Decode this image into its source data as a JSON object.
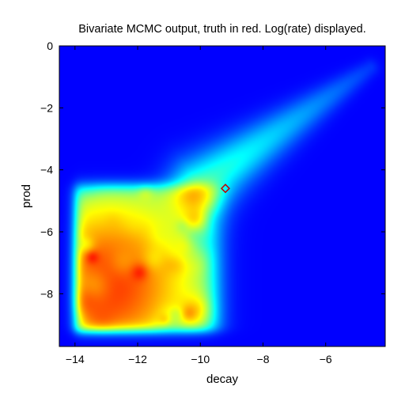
{
  "chart_data": {
    "type": "heatmap",
    "title": "Bivariate MCMC output, truth in red. Log(rate) displayed.",
    "xlabel": "decay",
    "ylabel": "prod",
    "xlim": [
      -14.5,
      -4.1
    ],
    "ylim": [
      -9.7,
      0
    ],
    "xticks": [
      -14,
      -12,
      -10,
      -8,
      -6
    ],
    "yticks": [
      0,
      -2,
      -4,
      -6,
      -8
    ],
    "xtick_labels": [
      "−14",
      "−12",
      "−10",
      "−8",
      "−6"
    ],
    "ytick_labels": [
      "0",
      "−2",
      "−4",
      "−6",
      "−8"
    ],
    "colormap": "jet",
    "background_color": "#00008f",
    "grid": false,
    "truth": {
      "x": -9.2,
      "y": -4.6,
      "marker": "diamond",
      "color": "#c00000"
    },
    "density_region": {
      "x_range": [
        -14.0,
        -9.5
      ],
      "y_range": [
        -9.2,
        -4.5
      ],
      "ridge": {
        "from": [
          -10.0,
          -4.5
        ],
        "to": [
          -4.6,
          -0.7
        ]
      },
      "peak": {
        "x": -13.0,
        "y": -7.7
      }
    }
  }
}
